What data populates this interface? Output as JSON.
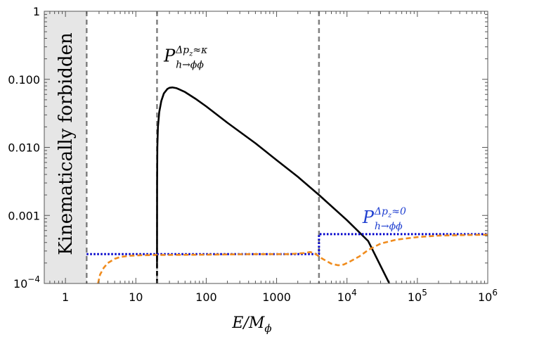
{
  "chart_data": {
    "type": "line",
    "xscale": "log",
    "yscale": "log",
    "xlim": [
      0.5,
      1000000
    ],
    "ylim": [
      0.0001,
      1
    ],
    "xlabel": "E/M_ϕ",
    "xlabel_parts": {
      "main": "E/M",
      "sub": "ϕ"
    },
    "x_ticks": [
      {
        "value": 1,
        "label": "1"
      },
      {
        "value": 10,
        "label": "10"
      },
      {
        "value": 100,
        "label": "100"
      },
      {
        "value": 1000,
        "label": "1000"
      },
      {
        "value": 10000,
        "label": "10",
        "exp": "4"
      },
      {
        "value": 100000,
        "label": "10",
        "exp": "5"
      },
      {
        "value": 1000000,
        "label": "10",
        "exp": "6"
      }
    ],
    "y_ticks": [
      {
        "value": 1,
        "label": "1"
      },
      {
        "value": 0.1,
        "label": "0.100"
      },
      {
        "value": 0.01,
        "label": "0.010"
      },
      {
        "value": 0.001,
        "label": "0.001"
      },
      {
        "value": 0.0001,
        "label": "10",
        "exp": "−4"
      }
    ],
    "forbidden_region": {
      "x": [
        0.5,
        2
      ],
      "label": "Kinematically forbidden",
      "color": "#e6e6e6"
    },
    "vlines": [
      {
        "x": 2,
        "style": "dashed",
        "color": "#808080"
      },
      {
        "x": 20,
        "style": "dashed",
        "color": "#808080"
      },
      {
        "x": 4000,
        "style": "dashed",
        "color": "#808080"
      }
    ],
    "series": [
      {
        "style": "solid",
        "color": "#000000",
        "points": [
          [
            20,
            0.0002
          ],
          [
            20.05,
            0.003
          ],
          [
            20.2,
            0.01
          ],
          [
            20.6,
            0.02
          ],
          [
            21.5,
            0.033
          ],
          [
            23,
            0.048
          ],
          [
            25,
            0.062
          ],
          [
            28,
            0.072
          ],
          [
            30,
            0.075
          ],
          [
            33,
            0.076
          ],
          [
            38,
            0.074
          ],
          [
            50,
            0.065
          ],
          [
            70,
            0.052
          ],
          [
            100,
            0.04
          ],
          [
            200,
            0.023
          ],
          [
            500,
            0.0115
          ],
          [
            1000,
            0.0065
          ],
          [
            2000,
            0.0037
          ],
          [
            4000,
            0.002
          ],
          [
            10000,
            0.00085
          ],
          [
            20000,
            0.00042
          ],
          [
            40000,
            0.0001
          ]
        ]
      },
      {
        "style": "dotted",
        "color": "#0000cc",
        "points": [
          [
            2,
            0.00027
          ],
          [
            4000,
            0.00027
          ],
          [
            4000,
            0.00053
          ],
          [
            1000000,
            0.00053
          ]
        ]
      },
      {
        "style": "dashed",
        "color": "#f08c1e",
        "points": [
          [
            2.9,
            0.0001
          ],
          [
            3.1,
            0.000135
          ],
          [
            3.5,
            0.00017
          ],
          [
            4,
            0.0002
          ],
          [
            5,
            0.00023
          ],
          [
            6,
            0.000245
          ],
          [
            8,
            0.000255
          ],
          [
            12,
            0.00026
          ],
          [
            19.5,
            0.000262
          ],
          [
            20,
            0.000262
          ],
          [
            100,
            0.000265
          ],
          [
            500,
            0.00027
          ],
          [
            1500,
            0.00027
          ],
          [
            2500,
            0.00028
          ],
          [
            3000,
            0.00029
          ],
          [
            3500,
            0.000275
          ],
          [
            4500,
            0.00023
          ],
          [
            6000,
            0.000195
          ],
          [
            7500,
            0.000185
          ],
          [
            9000,
            0.00019
          ],
          [
            11000,
            0.00021
          ],
          [
            15000,
            0.00025
          ],
          [
            20000,
            0.00031
          ],
          [
            30000,
            0.000385
          ],
          [
            50000,
            0.00044
          ],
          [
            100000,
            0.00048
          ],
          [
            200000,
            0.000505
          ],
          [
            500000,
            0.000515
          ],
          [
            1000000,
            0.00052
          ]
        ]
      },
      {
        "style": "dashed",
        "color": "#000000",
        "points": [
          [
            20,
            0.0001
          ],
          [
            20,
            0.00027
          ]
        ]
      }
    ],
    "annotations": [
      {
        "text_main": "P",
        "sup": "Δp",
        "sup_sub": "z",
        "sup_tail": "≈κ",
        "sub": "h→ϕϕ",
        "color": "#000000",
        "x": 30,
        "y": 0.2
      },
      {
        "text_main": "P",
        "sup": "Δp",
        "sup_sub": "z",
        "sup_tail": "≈0",
        "sub": "h→ϕϕ",
        "color": "#1f3fd0",
        "x": 20000,
        "y": 0.00085
      }
    ]
  }
}
